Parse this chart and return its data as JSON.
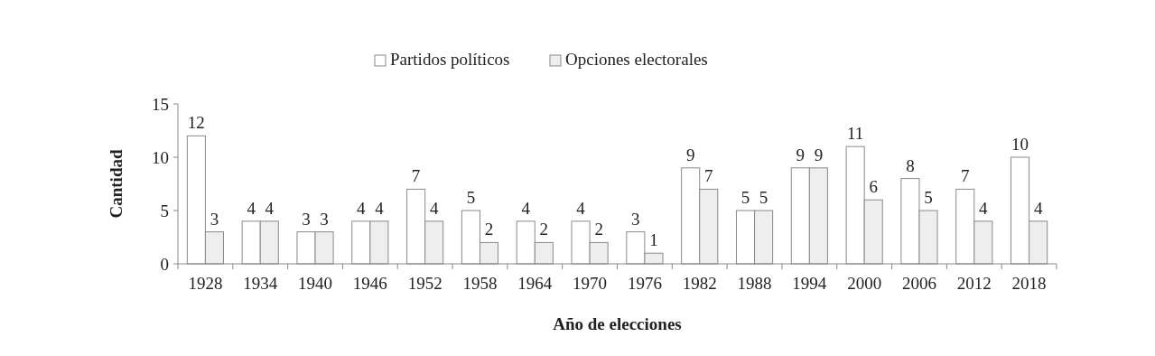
{
  "chart_data": {
    "type": "bar",
    "xlabel": "Año de elecciones",
    "ylabel": "Cantidad",
    "categories": [
      "1928",
      "1934",
      "1940",
      "1946",
      "1952",
      "1958",
      "1964",
      "1970",
      "1976",
      "1982",
      "1988",
      "1994",
      "2000",
      "2006",
      "2012",
      "2018"
    ],
    "series": [
      {
        "name": "Partidos políticos",
        "color": "#ffffff",
        "values": [
          12,
          4,
          3,
          4,
          7,
          5,
          4,
          4,
          3,
          9,
          5,
          9,
          11,
          8,
          7,
          10
        ]
      },
      {
        "name": "Opciones electorales",
        "color": "#eeeeee",
        "values": [
          3,
          4,
          3,
          4,
          4,
          2,
          2,
          2,
          1,
          7,
          5,
          9,
          6,
          5,
          4,
          4
        ]
      }
    ],
    "ylim": [
      0,
      15
    ],
    "yticks": [
      0,
      5,
      10,
      15
    ],
    "data_labels": true,
    "legend": "top",
    "grid": false
  }
}
